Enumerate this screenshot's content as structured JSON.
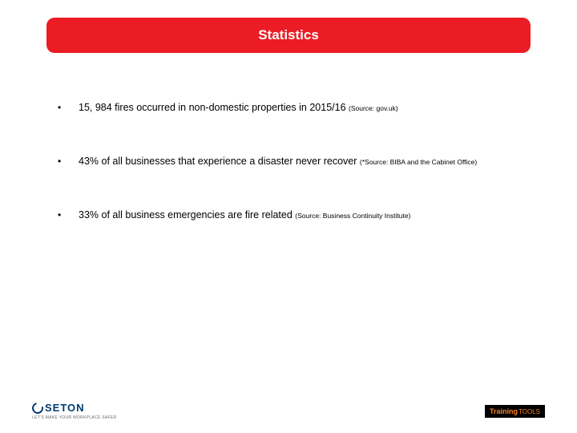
{
  "colors": {
    "banner_bg": "#ec1c24",
    "banner_text": "#ffffff",
    "body_text": "#000000",
    "source_text": "#000000",
    "seton_blue": "#003a70",
    "seton_tagline": "#6a6a6a",
    "training_bg": "#000000",
    "training_text": "#f58220"
  },
  "title": {
    "text": "Statistics",
    "fontsize": 17
  },
  "bullets": [
    {
      "main": "15, 984 fires occurred in non-domestic properties in 2015/16 ",
      "source": "(Source: gov.uk)"
    },
    {
      "main": "43% of all businesses that experience a disaster never recover ",
      "source": "(*Source: BIBA and the Cabinet Office)"
    },
    {
      "main": "33% of all business emergencies are fire related ",
      "source": "(Source: Business Continuity Institute)"
    }
  ],
  "footer": {
    "left_brand": "SETON",
    "left_tagline": "LET'S MAKE YOUR WORKPLACE SAFER",
    "right_brand_strong": "Training",
    "right_brand_thin": "TOOLS"
  }
}
